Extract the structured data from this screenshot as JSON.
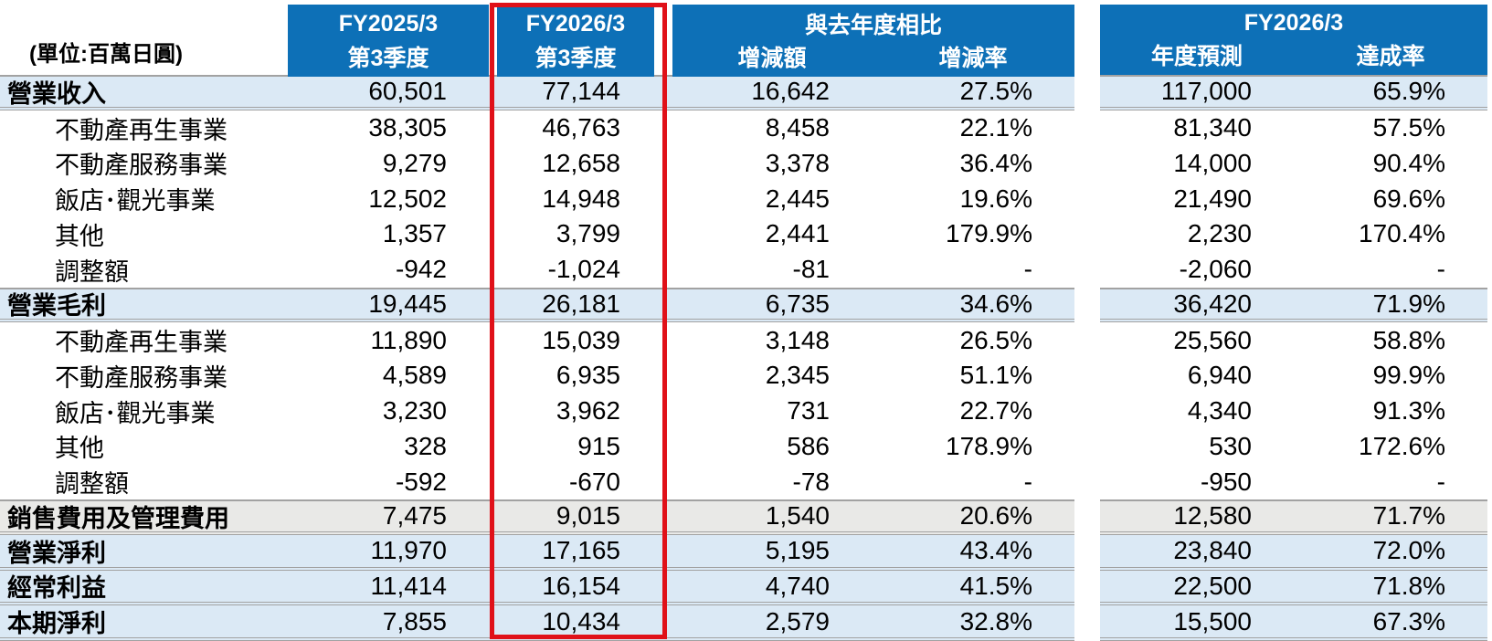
{
  "unit_label": "(單位:百萬日圓)",
  "header": {
    "col_fy2025": {
      "line1": "FY2025/3",
      "line2": "第3季度"
    },
    "col_fy2026": {
      "line1": "FY2026/3",
      "line2": "第3季度"
    },
    "group_yoy": {
      "title": "與去年度相比",
      "col_delta": "增減額",
      "col_rate": "增減率"
    },
    "group_annual": {
      "title": "FY2026/3",
      "col_forecast": "年度預測",
      "col_achievement": "達成率"
    }
  },
  "highlighted_column": "FY2026/3 第3季度",
  "colors": {
    "header_blue": "#0d70b7",
    "row_blue": "#dbe9f5",
    "row_gray": "#e9e9e7",
    "highlight_red": "#e01119",
    "border_gray": "#a2a2a2"
  },
  "rows": [
    {
      "label": "營業收入",
      "kind": "total_blue",
      "fy2025_q3": "60,501",
      "fy2026_q3": "77,144",
      "yoy_delta": "16,642",
      "yoy_rate": "27.5%",
      "fy2026_forecast": "117,000",
      "achievement_rate": "65.9%"
    },
    {
      "label": "不動產再生事業",
      "kind": "detail",
      "fy2025_q3": "38,305",
      "fy2026_q3": "46,763",
      "yoy_delta": "8,458",
      "yoy_rate": "22.1%",
      "fy2026_forecast": "81,340",
      "achievement_rate": "57.5%"
    },
    {
      "label": "不動產服務事業",
      "kind": "detail",
      "fy2025_q3": "9,279",
      "fy2026_q3": "12,658",
      "yoy_delta": "3,378",
      "yoy_rate": "36.4%",
      "fy2026_forecast": "14,000",
      "achievement_rate": "90.4%"
    },
    {
      "label": "飯店･觀光事業",
      "kind": "detail",
      "fy2025_q3": "12,502",
      "fy2026_q3": "14,948",
      "yoy_delta": "2,445",
      "yoy_rate": "19.6%",
      "fy2026_forecast": "21,490",
      "achievement_rate": "69.6%"
    },
    {
      "label": "其他",
      "kind": "detail",
      "fy2025_q3": "1,357",
      "fy2026_q3": "3,799",
      "yoy_delta": "2,441",
      "yoy_rate": "179.9%",
      "fy2026_forecast": "2,230",
      "achievement_rate": "170.4%"
    },
    {
      "label": "調整額",
      "kind": "detail",
      "fy2025_q3": "-942",
      "fy2026_q3": "-1,024",
      "yoy_delta": "-81",
      "yoy_rate": "-",
      "fy2026_forecast": "-2,060",
      "achievement_rate": "-"
    },
    {
      "label": "營業毛利",
      "kind": "total_blue",
      "fy2025_q3": "19,445",
      "fy2026_q3": "26,181",
      "yoy_delta": "6,735",
      "yoy_rate": "34.6%",
      "fy2026_forecast": "36,420",
      "achievement_rate": "71.9%"
    },
    {
      "label": "不動產再生事業",
      "kind": "detail",
      "fy2025_q3": "11,890",
      "fy2026_q3": "15,039",
      "yoy_delta": "3,148",
      "yoy_rate": "26.5%",
      "fy2026_forecast": "25,560",
      "achievement_rate": "58.8%"
    },
    {
      "label": "不動產服務事業",
      "kind": "detail",
      "fy2025_q3": "4,589",
      "fy2026_q3": "6,935",
      "yoy_delta": "2,345",
      "yoy_rate": "51.1%",
      "fy2026_forecast": "6,940",
      "achievement_rate": "99.9%"
    },
    {
      "label": "飯店･觀光事業",
      "kind": "detail",
      "fy2025_q3": "3,230",
      "fy2026_q3": "3,962",
      "yoy_delta": "731",
      "yoy_rate": "22.7%",
      "fy2026_forecast": "4,340",
      "achievement_rate": "91.3%"
    },
    {
      "label": "其他",
      "kind": "detail",
      "fy2025_q3": "328",
      "fy2026_q3": "915",
      "yoy_delta": "586",
      "yoy_rate": "178.9%",
      "fy2026_forecast": "530",
      "achievement_rate": "172.6%"
    },
    {
      "label": "調整額",
      "kind": "detail",
      "fy2025_q3": "-592",
      "fy2026_q3": "-670",
      "yoy_delta": "-78",
      "yoy_rate": "-",
      "fy2026_forecast": "-950",
      "achievement_rate": "-"
    },
    {
      "label": "銷售費用及管理費用",
      "kind": "total_gray",
      "fy2025_q3": "7,475",
      "fy2026_q3": "9,015",
      "yoy_delta": "1,540",
      "yoy_rate": "20.6%",
      "fy2026_forecast": "12,580",
      "achievement_rate": "71.7%"
    },
    {
      "label": "營業淨利",
      "kind": "total_blue",
      "fy2025_q3": "11,970",
      "fy2026_q3": "17,165",
      "yoy_delta": "5,195",
      "yoy_rate": "43.4%",
      "fy2026_forecast": "23,840",
      "achievement_rate": "72.0%"
    },
    {
      "label": "經常利益",
      "kind": "total_blue",
      "fy2025_q3": "11,414",
      "fy2026_q3": "16,154",
      "yoy_delta": "4,740",
      "yoy_rate": "41.5%",
      "fy2026_forecast": "22,500",
      "achievement_rate": "71.8%"
    },
    {
      "label": "本期淨利",
      "kind": "total_blue",
      "fy2025_q3": "7,855",
      "fy2026_q3": "10,434",
      "yoy_delta": "2,579",
      "yoy_rate": "32.8%",
      "fy2026_forecast": "15,500",
      "achievement_rate": "67.3%"
    }
  ]
}
